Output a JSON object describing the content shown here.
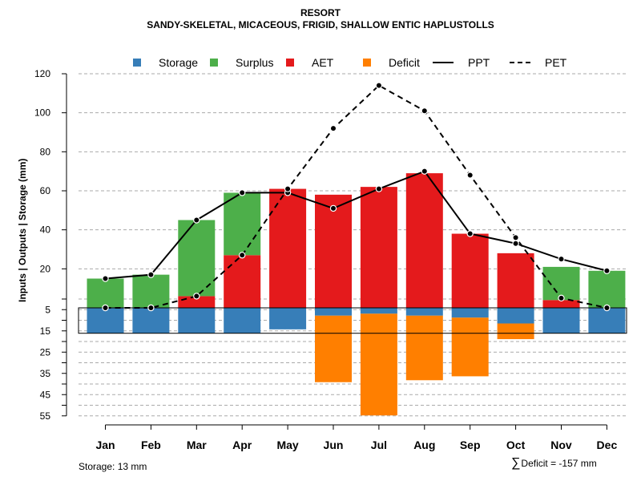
{
  "chart_data": {
    "type": "bar",
    "title": "RESORT",
    "subtitle": "SANDY-SKELETAL, MICACEOUS, FRIGID, SHALLOW ENTIC HAPLUSTOLLS",
    "ylabel": "Inputs | Outputs | Storage    (mm)",
    "xlabel": "",
    "categories": [
      "Jan",
      "Feb",
      "Mar",
      "Apr",
      "May",
      "Jun",
      "Jul",
      "Aug",
      "Sep",
      "Oct",
      "Nov",
      "Dec"
    ],
    "ylim_upper": [
      0,
      120
    ],
    "ylim_lower": [
      0,
      55
    ],
    "yticks_upper": [
      20,
      40,
      60,
      80,
      100,
      120
    ],
    "yticks_lower": [
      5,
      15,
      25,
      35,
      45,
      55
    ],
    "storage_capacity": 13,
    "series": [
      {
        "name": "Storage",
        "color": "#377EB8",
        "values": [
          13,
          13,
          13,
          13,
          11,
          4,
          3,
          4,
          5,
          8,
          13,
          13
        ]
      },
      {
        "name": "Surplus",
        "color": "#4DAF4A",
        "values": [
          15,
          17,
          39,
          32,
          0,
          0,
          0,
          0,
          0,
          0,
          17,
          19
        ]
      },
      {
        "name": "AET",
        "color": "#E41A1C",
        "values": [
          0,
          0,
          6,
          27,
          61,
          58,
          62,
          69,
          38,
          28,
          4,
          0
        ]
      },
      {
        "name": "Deficit",
        "color": "#FF7F00",
        "values": [
          0,
          0,
          0,
          0,
          0,
          34,
          52,
          33,
          30,
          8,
          0,
          0
        ]
      },
      {
        "name": "PPT",
        "color": "#000000",
        "style": "solid",
        "values": [
          15,
          17,
          45,
          59,
          59,
          51,
          61,
          70,
          38,
          33,
          25,
          19
        ]
      },
      {
        "name": "PET",
        "color": "#000000",
        "style": "dashed",
        "values": [
          0,
          0,
          6,
          27,
          61,
          92,
          114,
          101,
          68,
          36,
          5,
          0
        ]
      }
    ],
    "footnote_storage": "Storage: 13 mm",
    "footnote_deficit": "Deficit = -157 mm",
    "footnote_deficit_symbol": "∑",
    "grid": true,
    "legend_position": "top"
  }
}
